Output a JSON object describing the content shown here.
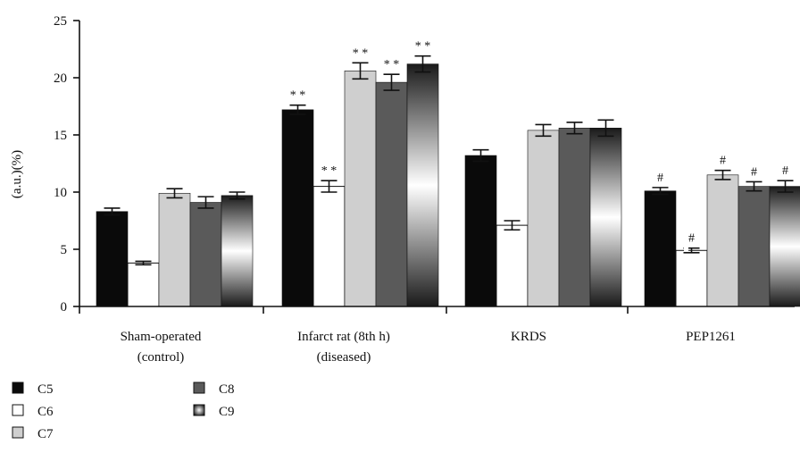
{
  "chart_data": {
    "type": "bar",
    "ylabel": "(a.u.)(%)",
    "ylim": [
      0,
      25
    ],
    "yticks": [
      0,
      5,
      10,
      15,
      20,
      25
    ],
    "grid": false,
    "legend_position": "bottom-left",
    "categories": [
      {
        "line1": "Sham-operated",
        "line2": "(control)"
      },
      {
        "line1": "Infarct rat (8th h)",
        "line2": "(diseased)"
      },
      {
        "line1": "KRDS",
        "line2": ""
      },
      {
        "line1": "PEP1261",
        "line2": ""
      }
    ],
    "series": [
      {
        "name": "C5",
        "values": [
          8.3,
          17.2,
          13.2,
          10.1
        ],
        "errors": [
          0.3,
          0.4,
          0.5,
          0.3
        ],
        "annotations": [
          "",
          "**",
          "",
          "#"
        ]
      },
      {
        "name": "C6",
        "values": [
          3.8,
          10.5,
          7.1,
          4.9
        ],
        "errors": [
          0.15,
          0.5,
          0.4,
          0.2
        ],
        "annotations": [
          "",
          "**",
          "",
          "#"
        ]
      },
      {
        "name": "C7",
        "values": [
          9.9,
          20.6,
          15.4,
          11.5
        ],
        "errors": [
          0.4,
          0.7,
          0.5,
          0.4
        ],
        "annotations": [
          "",
          "**",
          "",
          "#"
        ]
      },
      {
        "name": "C8",
        "values": [
          9.1,
          19.6,
          15.6,
          10.5
        ],
        "errors": [
          0.5,
          0.7,
          0.5,
          0.4
        ],
        "annotations": [
          "",
          "**",
          "",
          "#"
        ]
      },
      {
        "name": "C9",
        "values": [
          9.7,
          21.2,
          15.6,
          10.5
        ],
        "errors": [
          0.3,
          0.7,
          0.7,
          0.5
        ],
        "annotations": [
          "",
          "**",
          "",
          "#"
        ]
      }
    ]
  },
  "colors": {
    "C5": "#0a0a0a",
    "C6": "#ffffff",
    "C7": "#cfcfcf",
    "C8": "#5a5a5a",
    "C9_edge": "#1a1a1a",
    "C9_center": "#ffffff"
  }
}
